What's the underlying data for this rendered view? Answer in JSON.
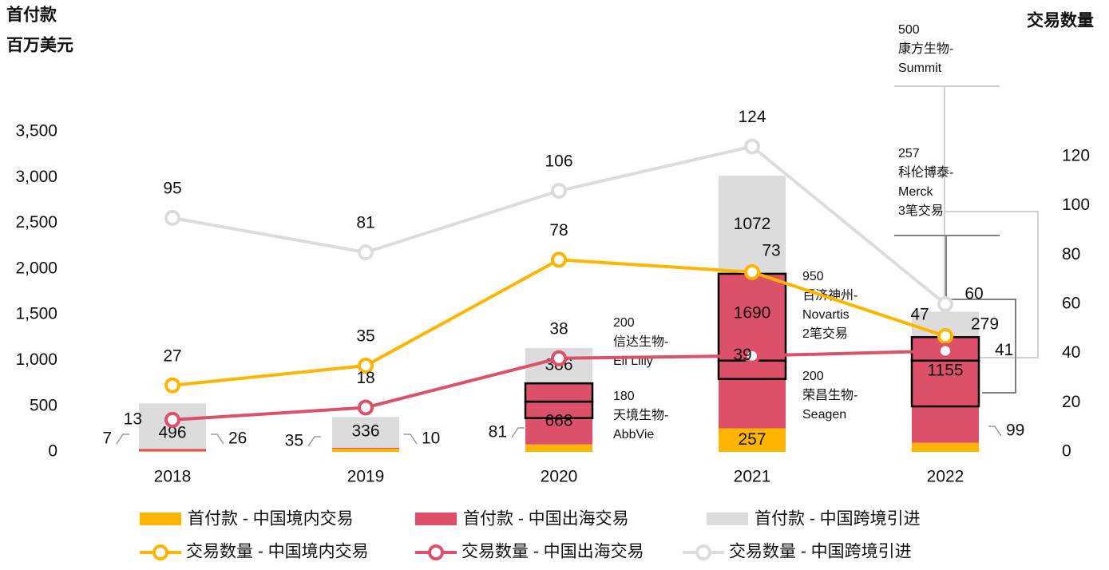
{
  "chart_data": {
    "type": "bar-line",
    "y_axis_title": [
      "首付款",
      "百万美元"
    ],
    "y2_axis_title": "交易数量",
    "categories": [
      "2018",
      "2019",
      "2020",
      "2021",
      "2022"
    ],
    "bar_series": [
      {
        "name": "首付款 - 中国境内交易",
        "color": "#ffb400",
        "values": [
          7,
          35,
          81,
          257,
          99
        ]
      },
      {
        "name": "首付款 - 中国出海交易",
        "color": "#dc506a",
        "values": [
          26,
          10,
          668,
          1690,
          1155
        ]
      },
      {
        "name": "首付款 - 中国跨境引进",
        "color": "#dcdcdc",
        "values": [
          496,
          336,
          386,
          1072,
          279
        ]
      }
    ],
    "line_series": [
      {
        "name": "交易数量 - 中国境内交易",
        "color": "#ffb400",
        "axis": "y2",
        "values": [
          27,
          35,
          78,
          73,
          47
        ]
      },
      {
        "name": "交易数量 - 中国出海交易",
        "color": "#dc506a",
        "axis": "y2",
        "values": [
          13,
          18,
          38,
          39,
          41
        ]
      },
      {
        "name": "交易数量 - 中国跨境引进",
        "color": "#dcdcdc",
        "axis": "y2",
        "values": [
          95,
          81,
          106,
          124,
          60
        ]
      }
    ],
    "ylim": [
      0,
      3500
    ],
    "yticks": [
      0,
      500,
      {
        "value": 1000,
        "label": "1,000"
      },
      {
        "value": 1500,
        "label": "1,500"
      },
      {
        "value": 2000,
        "label": "2,000"
      },
      {
        "value": 2500,
        "label": "2,500"
      },
      {
        "value": 3000,
        "label": "3,000"
      },
      {
        "value": 3500,
        "label": "3,500"
      }
    ],
    "y2lim": [
      0,
      130
    ],
    "y2ticks": [
      0,
      20,
      40,
      60,
      80,
      100,
      120
    ],
    "deals": [
      {
        "category": "2020",
        "items": [
          {
            "value": 200,
            "lines": [
              "信达生物-",
              "Eli Lilly"
            ]
          },
          {
            "value": 180,
            "lines": [
              "天境生物-",
              "AbbVie"
            ]
          }
        ]
      },
      {
        "category": "2021",
        "items": [
          {
            "value": 950,
            "lines": [
              "百济神州-",
              "Novartis",
              "2笔交易"
            ]
          },
          {
            "value": 200,
            "lines": [
              "荣昌生物-",
              "Seagen"
            ]
          }
        ]
      },
      {
        "category": "2022",
        "items": [
          {
            "value": 257,
            "lines": [
              "科伦博泰-",
              "Merck",
              "3笔交易"
            ]
          },
          {
            "value": 500,
            "lines": [
              "康方生物-",
              "Summit"
            ]
          }
        ]
      }
    ]
  }
}
